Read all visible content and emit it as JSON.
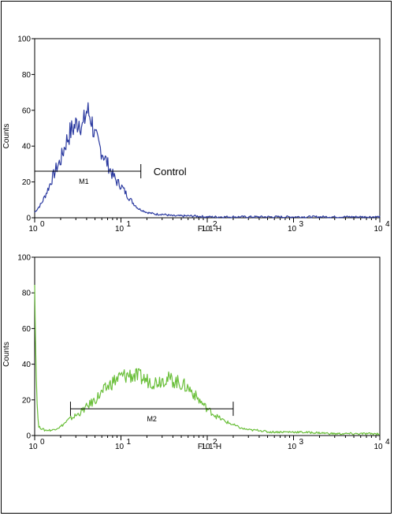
{
  "chart_data": [
    {
      "type": "line",
      "color": "#2b3aa0",
      "xlabel": "FL 1-H",
      "ylabel": "Counts",
      "xscale": "log",
      "xlim": [
        1,
        10000
      ],
      "ylim": [
        0,
        100
      ],
      "x_ticks": [
        {
          "base": "10",
          "exp": "0"
        },
        {
          "base": "10",
          "exp": "1"
        },
        {
          "base": "10",
          "exp": "2"
        },
        {
          "base": "10",
          "exp": "3"
        },
        {
          "base": "10",
          "exp": "4"
        }
      ],
      "y_ticks": [
        "0",
        "20",
        "40",
        "60",
        "80",
        "100"
      ],
      "series": [
        {
          "x": [
            1.0,
            1.2,
            1.4,
            1.6,
            1.8,
            2.0,
            2.3,
            2.6,
            3.0,
            3.3,
            3.6,
            4.0,
            4.5,
            5.0,
            5.6,
            6.3,
            7.0,
            8.0,
            9.0,
            10,
            12,
            14,
            16,
            18,
            20,
            25,
            30,
            40,
            50,
            70,
            100,
            200,
            500,
            1000,
            3000,
            10000
          ],
          "y": [
            3,
            8,
            15,
            22,
            28,
            32,
            42,
            48,
            52,
            55,
            50,
            60,
            56,
            45,
            40,
            35,
            30,
            24,
            20,
            18,
            12,
            8,
            5,
            4,
            3,
            2,
            2,
            1,
            1,
            1,
            0.5,
            0.5,
            0.5,
            0.5,
            0.5,
            0.5
          ]
        }
      ],
      "gate": {
        "label": "M1",
        "x_start": 1.0,
        "x_end": 17,
        "y": 26
      },
      "annotation": "Control"
    },
    {
      "type": "line",
      "color": "#6abf3a",
      "xlabel": "FL 1-H",
      "ylabel": "Counts",
      "xscale": "log",
      "xlim": [
        1,
        10000
      ],
      "ylim": [
        0,
        100
      ],
      "x_ticks": [
        {
          "base": "10",
          "exp": "0"
        },
        {
          "base": "10",
          "exp": "1"
        },
        {
          "base": "10",
          "exp": "2"
        },
        {
          "base": "10",
          "exp": "3"
        },
        {
          "base": "10",
          "exp": "4"
        }
      ],
      "y_ticks": [
        "0",
        "20",
        "40",
        "60",
        "80",
        "100"
      ],
      "series": [
        {
          "x": [
            1.0,
            1.03,
            1.1,
            1.3,
            1.6,
            2.0,
            2.5,
            3.2,
            4.0,
            5.0,
            6.3,
            8.0,
            10,
            12.6,
            16,
            20,
            25,
            32,
            40,
            50,
            63,
            80,
            100,
            126,
            160,
            200,
            250,
            320,
            400,
            500,
            630,
            800,
            1000,
            2000,
            3000,
            5000,
            7000,
            10000
          ],
          "y": [
            98,
            40,
            5,
            3,
            3,
            5,
            9,
            12,
            16,
            20,
            25,
            30,
            33,
            34,
            33,
            31,
            30,
            32,
            31,
            29,
            26,
            20,
            15,
            11,
            8,
            6,
            4,
            3,
            3,
            2,
            2,
            2,
            2,
            1.5,
            1,
            1,
            1,
            1
          ]
        }
      ],
      "gate": {
        "label": "M2",
        "x_start": 2.6,
        "x_end": 200,
        "y": 15
      }
    }
  ]
}
